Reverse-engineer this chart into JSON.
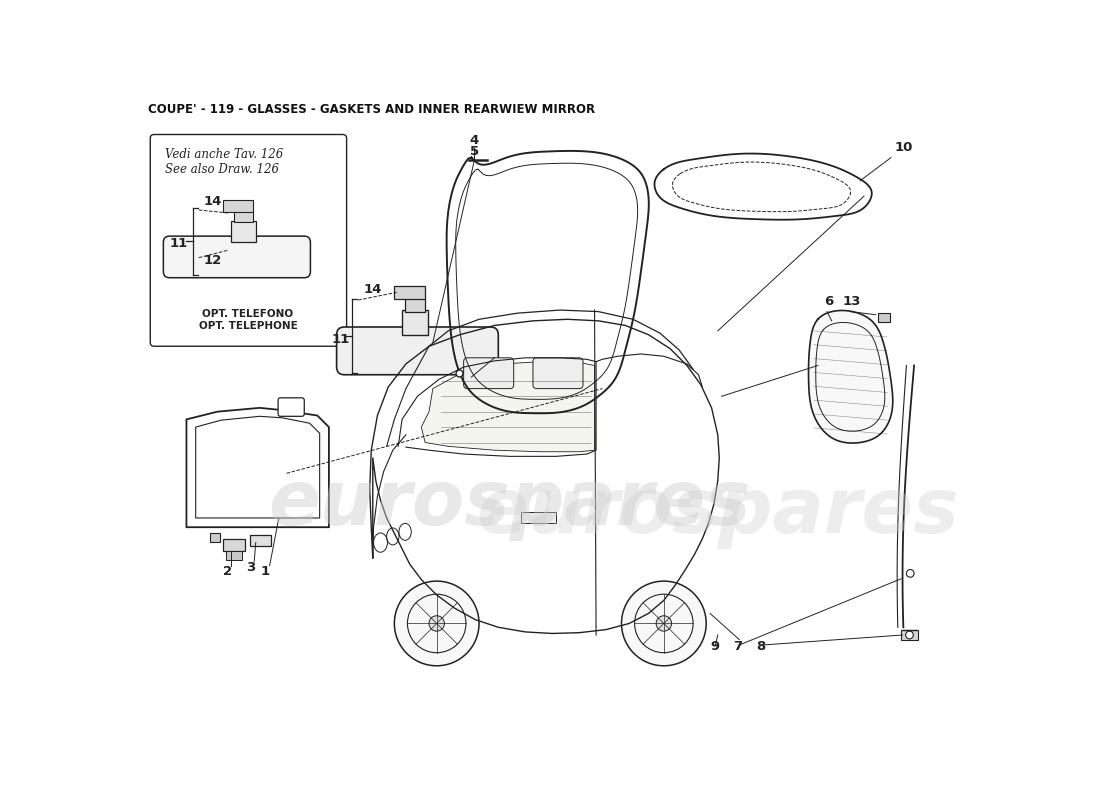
{
  "title": "COUPE' - 119 - GLASSES - GASKETS AND INNER REARWIEW MIRROR",
  "background_color": "#ffffff",
  "watermark_text": "eurospares",
  "watermark_color": "#cccccc",
  "title_fontsize": 8.5,
  "title_color": "#111111",
  "line_color": "#222222",
  "label_fontsize": 9.5,
  "note_box_text": [
    "Vedi anche Tav. 126",
    "See also Draw. 126"
  ],
  "opt_text": [
    "OPT. TELEFONO",
    "OPT. TELEPHONE"
  ]
}
